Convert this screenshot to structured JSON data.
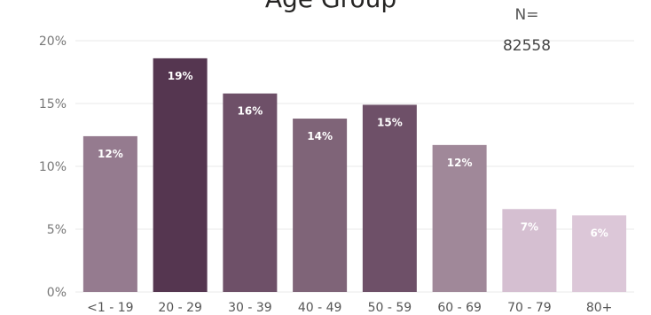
{
  "chart_data": {
    "type": "bar",
    "title": "Age Group",
    "categories": [
      "<1 - 19",
      "20 - 29",
      "30 - 39",
      "40 - 49",
      "50 - 59",
      "60 - 69",
      "70 - 79",
      "80+"
    ],
    "values": [
      12.4,
      18.6,
      15.8,
      13.8,
      14.9,
      11.7,
      6.6,
      6.1
    ],
    "data_labels": [
      "12%",
      "19%",
      "16%",
      "14%",
      "15%",
      "12%",
      "7%",
      "6%"
    ],
    "bar_colors": [
      "#957b8f",
      "#553650",
      "#6e5068",
      "#7f6478",
      "#6e5068",
      "#a08899",
      "#d5bfd1",
      "#dcc7d8"
    ],
    "yticks": [
      "0%",
      "5%",
      "10%",
      "15%",
      "20%"
    ],
    "ylim": [
      0,
      20
    ],
    "grid": true,
    "xlabel": "",
    "ylabel": ""
  },
  "annotation": {
    "n_label": "N=",
    "n_value": "82558"
  }
}
